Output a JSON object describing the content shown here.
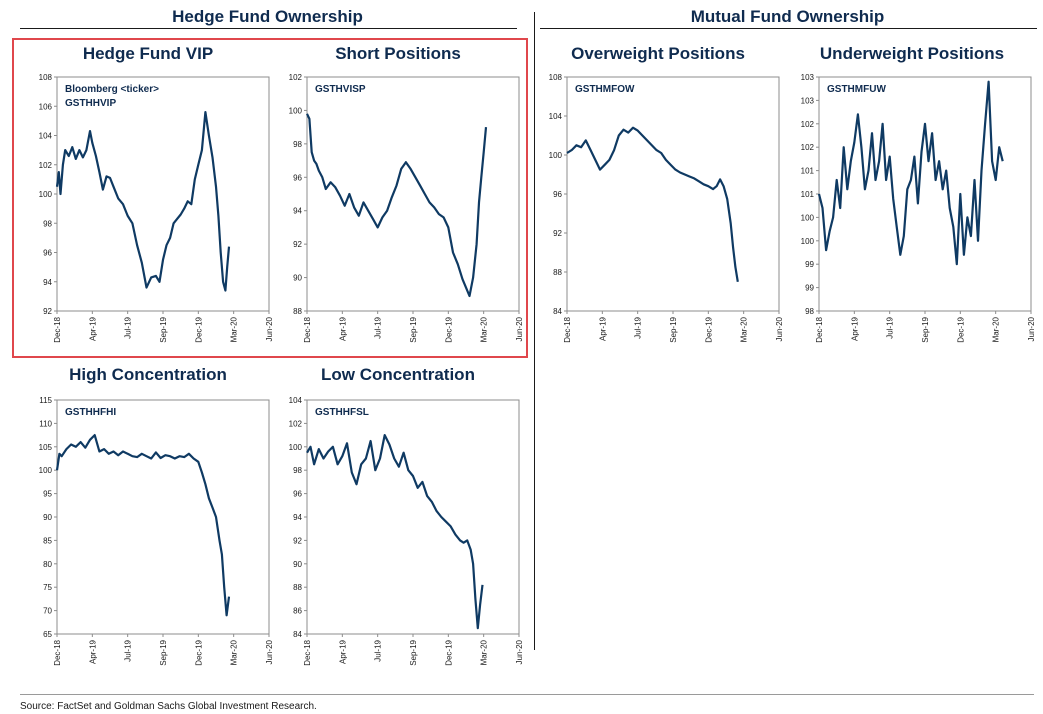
{
  "header": {
    "left_title": "Hedge Fund Ownership",
    "right_title": "Mutual Fund Ownership"
  },
  "source": "Source: FactSet and Goldman Sachs Global Investment Research.",
  "colors": {
    "line": "#0f3a63",
    "highlight": "#e0474c",
    "title": "#0f2b4f"
  },
  "chart_data": [
    {
      "id": "hf-vip",
      "type": "line",
      "title": "Hedge Fund VIP",
      "annotation": [
        "Bloomberg <ticker>",
        "GSTHHVIP"
      ],
      "ylim": [
        92,
        108
      ],
      "yticks": [
        "92",
        "94",
        "96",
        "98",
        "100",
        "102",
        "104",
        "106",
        "108"
      ],
      "xticks": [
        "Dec-18",
        "Apr-19",
        "Jul-19",
        "Sep-19",
        "Dec-19",
        "Mar-20",
        "Jun-20"
      ],
      "xlim": [
        0,
        18
      ],
      "x": [
        0,
        0.15,
        0.3,
        0.5,
        0.7,
        1.0,
        1.3,
        1.6,
        1.9,
        2.2,
        2.5,
        2.8,
        3.0,
        3.3,
        3.6,
        3.9,
        4.2,
        4.5,
        4.8,
        5.2,
        5.6,
        6.0,
        6.4,
        6.8,
        7.2,
        7.6,
        8.0,
        8.4,
        8.7,
        9.0,
        9.3,
        9.6,
        9.9,
        10.2,
        10.5,
        10.8,
        11.1,
        11.4,
        11.7,
        12.0,
        12.3,
        12.6,
        12.9,
        13.2,
        13.5,
        13.7,
        13.9,
        14.1,
        14.3,
        14.45,
        14.6
      ],
      "values": [
        100.5,
        101.5,
        100.0,
        102.0,
        103.0,
        102.6,
        103.2,
        102.4,
        103.0,
        102.5,
        103.0,
        104.3,
        103.5,
        102.6,
        101.5,
        100.3,
        101.2,
        101.1,
        100.5,
        99.7,
        99.3,
        98.5,
        98.0,
        96.5,
        95.3,
        93.6,
        94.3,
        94.4,
        94.0,
        95.5,
        96.5,
        97.0,
        98.0,
        98.3,
        98.6,
        99.0,
        99.5,
        99.3,
        101.0,
        102.0,
        103.0,
        105.6,
        104.0,
        102.5,
        100.5,
        98.5,
        96.0,
        94.0,
        93.4,
        95.0,
        96.4
      ]
    },
    {
      "id": "short",
      "type": "line",
      "title": "Short Positions",
      "annotation": [
        "GSTHVISP"
      ],
      "ylim": [
        88,
        102
      ],
      "yticks": [
        "88",
        "90",
        "92",
        "94",
        "96",
        "98",
        "100",
        "102"
      ],
      "xticks": [
        "Dec-18",
        "Apr-19",
        "Jul-19",
        "Sep-19",
        "Dec-19",
        "Mar-20",
        "Jun-20"
      ],
      "xlim": [
        0,
        18
      ],
      "x": [
        0,
        0.2,
        0.4,
        0.6,
        0.8,
        1.0,
        1.3,
        1.6,
        2.0,
        2.4,
        2.8,
        3.2,
        3.6,
        4.0,
        4.4,
        4.8,
        5.2,
        5.6,
        6.0,
        6.4,
        6.8,
        7.2,
        7.6,
        8.0,
        8.4,
        8.8,
        9.2,
        9.6,
        10.0,
        10.4,
        10.8,
        11.2,
        11.6,
        12.0,
        12.4,
        12.8,
        13.2,
        13.5,
        13.8,
        14.1,
        14.4,
        14.6,
        14.8,
        15.0,
        15.2
      ],
      "values": [
        99.8,
        99.5,
        97.5,
        97.0,
        96.8,
        96.4,
        96.0,
        95.3,
        95.7,
        95.4,
        94.9,
        94.3,
        95.0,
        94.2,
        93.7,
        94.5,
        94.0,
        93.5,
        93.0,
        93.6,
        94.0,
        94.8,
        95.5,
        96.5,
        96.9,
        96.5,
        96.0,
        95.5,
        95.0,
        94.5,
        94.2,
        93.8,
        93.6,
        93.0,
        91.5,
        90.8,
        89.9,
        89.4,
        88.9,
        90.0,
        92.0,
        94.5,
        96.0,
        97.5,
        99.0
      ]
    },
    {
      "id": "overweight",
      "type": "line",
      "title": "Overweight Positions",
      "annotation": [
        "GSTHMFOW"
      ],
      "ylim": [
        84,
        108
      ],
      "yticks": [
        "84",
        "88",
        "92",
        "96",
        "100",
        "104",
        "108"
      ],
      "xticks": [
        "Dec-18",
        "Apr-19",
        "Jul-19",
        "Sep-19",
        "Dec-19",
        "Mar-20",
        "Jun-20"
      ],
      "xlim": [
        0,
        18
      ],
      "x": [
        0,
        0.4,
        0.8,
        1.2,
        1.6,
        2.0,
        2.4,
        2.8,
        3.2,
        3.6,
        4.0,
        4.4,
        4.8,
        5.2,
        5.6,
        6.0,
        6.4,
        6.8,
        7.2,
        7.6,
        8.0,
        8.4,
        8.8,
        9.2,
        9.6,
        10.0,
        10.4,
        10.8,
        11.2,
        11.6,
        12.0,
        12.4,
        12.7,
        13.0,
        13.3,
        13.6,
        13.9,
        14.1,
        14.3,
        14.5
      ],
      "values": [
        100.2,
        100.5,
        101.0,
        100.8,
        101.5,
        100.5,
        99.5,
        98.5,
        99.0,
        99.5,
        100.5,
        102.0,
        102.6,
        102.3,
        102.8,
        102.5,
        102.0,
        101.5,
        101.0,
        100.5,
        100.2,
        99.5,
        99.0,
        98.5,
        98.2,
        98.0,
        97.8,
        97.6,
        97.3,
        97.0,
        96.8,
        96.5,
        96.8,
        97.5,
        96.8,
        95.5,
        93.0,
        90.5,
        88.5,
        87.0
      ]
    },
    {
      "id": "underweight",
      "type": "line",
      "title": "Underweight Positions",
      "annotation": [
        "GSTHMFUW"
      ],
      "ylim": [
        98,
        103
      ],
      "yticks": [
        "98",
        "99",
        "99",
        "100",
        "100",
        "101",
        "101",
        "102",
        "102",
        "103",
        "103"
      ],
      "xticks": [
        "Dec-18",
        "Apr-19",
        "Jul-19",
        "Sep-19",
        "Dec-19",
        "Mar-20",
        "Jun-20"
      ],
      "xlim": [
        0,
        18
      ],
      "x": [
        0,
        0.3,
        0.6,
        0.9,
        1.2,
        1.5,
        1.8,
        2.1,
        2.4,
        2.7,
        3.0,
        3.3,
        3.6,
        3.9,
        4.2,
        4.5,
        4.8,
        5.1,
        5.4,
        5.7,
        6.0,
        6.3,
        6.6,
        6.9,
        7.2,
        7.5,
        7.8,
        8.1,
        8.4,
        8.7,
        9.0,
        9.3,
        9.6,
        9.9,
        10.2,
        10.5,
        10.8,
        11.1,
        11.4,
        11.7,
        12.0,
        12.3,
        12.6,
        12.9,
        13.2,
        13.5,
        13.8,
        14.1,
        14.4,
        14.7,
        15.0,
        15.3,
        15.6
      ],
      "values": [
        100.5,
        100.2,
        99.3,
        99.7,
        100.0,
        100.8,
        100.2,
        101.5,
        100.6,
        101.2,
        101.6,
        102.2,
        101.5,
        100.6,
        101.0,
        101.8,
        100.8,
        101.2,
        102.0,
        100.8,
        101.3,
        100.4,
        99.8,
        99.2,
        99.6,
        100.6,
        100.8,
        101.3,
        100.3,
        101.4,
        102.0,
        101.2,
        101.8,
        100.8,
        101.2,
        100.6,
        101.0,
        100.2,
        99.8,
        99.0,
        100.5,
        99.2,
        100.0,
        99.6,
        100.8,
        99.5,
        101.0,
        102.0,
        102.9,
        101.2,
        100.8,
        101.5,
        101.2
      ]
    },
    {
      "id": "high-conc",
      "type": "line",
      "title": "High Concentration",
      "annotation": [
        "GSTHHFHI"
      ],
      "ylim": [
        65,
        115
      ],
      "yticks": [
        "65",
        "70",
        "75",
        "80",
        "85",
        "90",
        "95",
        "100",
        "105",
        "110",
        "115"
      ],
      "xticks": [
        "Dec-18",
        "Apr-19",
        "Jul-19",
        "Sep-19",
        "Dec-19",
        "Mar-20",
        "Jun-20"
      ],
      "xlim": [
        0,
        18
      ],
      "x": [
        0,
        0.2,
        0.4,
        0.8,
        1.2,
        1.6,
        2.0,
        2.4,
        2.8,
        3.2,
        3.6,
        4.0,
        4.4,
        4.8,
        5.2,
        5.6,
        6.0,
        6.4,
        6.8,
        7.2,
        7.6,
        8.0,
        8.4,
        8.8,
        9.2,
        9.6,
        10.0,
        10.4,
        10.8,
        11.2,
        11.6,
        12.0,
        12.3,
        12.6,
        12.9,
        13.2,
        13.5,
        13.8,
        14.0,
        14.2,
        14.4,
        14.6
      ],
      "values": [
        100.0,
        103.5,
        103.0,
        104.5,
        105.5,
        105.0,
        106.0,
        104.8,
        106.5,
        107.5,
        104.0,
        104.5,
        103.5,
        104.0,
        103.2,
        104.0,
        103.5,
        103.0,
        102.8,
        103.5,
        103.0,
        102.5,
        103.8,
        102.6,
        103.2,
        103.0,
        102.5,
        103.0,
        102.8,
        103.5,
        102.5,
        101.8,
        99.5,
        97.0,
        94.0,
        92.0,
        90.0,
        85.0,
        82.0,
        75.0,
        69.0,
        73.0
      ]
    },
    {
      "id": "low-conc",
      "type": "line",
      "title": "Low Concentration",
      "annotation": [
        "GSTHHFSL"
      ],
      "ylim": [
        84,
        104
      ],
      "yticks": [
        "84",
        "86",
        "88",
        "90",
        "92",
        "94",
        "96",
        "98",
        "100",
        "102",
        "104"
      ],
      "xticks": [
        "Dec-18",
        "Apr-19",
        "Jul-19",
        "Sep-19",
        "Dec-19",
        "Mar-20",
        "Jun-20"
      ],
      "xlim": [
        0,
        18
      ],
      "x": [
        0,
        0.3,
        0.6,
        1.0,
        1.4,
        1.8,
        2.2,
        2.6,
        3.0,
        3.4,
        3.8,
        4.2,
        4.6,
        5.0,
        5.4,
        5.8,
        6.2,
        6.6,
        7.0,
        7.4,
        7.8,
        8.2,
        8.6,
        9.0,
        9.4,
        9.8,
        10.2,
        10.6,
        11.0,
        11.4,
        11.8,
        12.2,
        12.6,
        13.0,
        13.3,
        13.6,
        13.9,
        14.1,
        14.3,
        14.5,
        14.7,
        14.9
      ],
      "values": [
        99.5,
        100.0,
        98.5,
        99.8,
        99.0,
        99.6,
        100.0,
        98.5,
        99.2,
        100.3,
        97.8,
        96.8,
        98.5,
        99.0,
        100.5,
        98.0,
        99.0,
        101.0,
        100.2,
        99.0,
        98.3,
        99.5,
        98.0,
        97.5,
        96.5,
        97.0,
        95.8,
        95.3,
        94.5,
        94.0,
        93.6,
        93.2,
        92.5,
        92.0,
        91.8,
        92.0,
        91.2,
        90.0,
        87.0,
        84.5,
        86.5,
        88.2
      ]
    }
  ]
}
